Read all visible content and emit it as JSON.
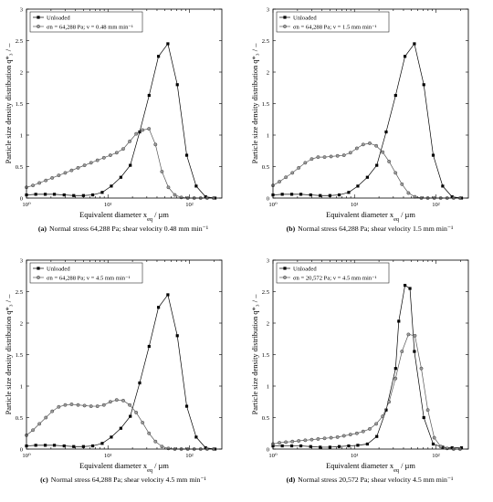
{
  "figure": {
    "colors": {
      "unloaded": "#000000",
      "loaded": "#555555",
      "loaded_fill": "#9a9a9a"
    }
  },
  "chart_data": [
    {
      "type": "line",
      "panel_label": "(a)",
      "caption": "Normal stress 64,288 Pa; shear velocity 0.48 mm min⁻¹",
      "xlabel": "Equivalent diameter x_eq / µm",
      "ylabel": "Particle size density distribution q*₃ / –",
      "xscale": "log",
      "xlim": [
        1,
        250
      ],
      "ylim": [
        0,
        3
      ],
      "yticks": [
        "0",
        "0.5",
        "1",
        "1.5",
        "2",
        "2.5",
        "3"
      ],
      "xticks": [
        "10⁰",
        "10¹",
        "10²"
      ],
      "legend_position": "top-left",
      "series": [
        {
          "name": "Unloaded",
          "marker": "square",
          "x": [
            1,
            1.3,
            1.7,
            2.2,
            2.9,
            3.8,
            5,
            6.5,
            8.5,
            11,
            14.4,
            18.8,
            24.5,
            32,
            41.7,
            54.4,
            71,
            92.6,
            121,
            158,
            206
          ],
          "y": [
            0.05,
            0.06,
            0.06,
            0.06,
            0.05,
            0.04,
            0.04,
            0.05,
            0.09,
            0.19,
            0.33,
            0.52,
            1.05,
            1.63,
            2.25,
            2.45,
            1.8,
            0.68,
            0.19,
            0.02,
            0.0
          ]
        },
        {
          "name": "σn = 64,288 Pa; v = 0.48 mm min⁻¹",
          "marker": "circle",
          "x": [
            1,
            1.2,
            1.44,
            1.73,
            2.07,
            2.49,
            2.99,
            3.58,
            4.3,
            5.16,
            6.2,
            7.43,
            8.92,
            10.7,
            12.8,
            15.4,
            18.5,
            22.2,
            26.6,
            31.9,
            38.3,
            46,
            55.2,
            66.2,
            79.5,
            95.4,
            114.4,
            137.3,
            164.8,
            197.7
          ],
          "y": [
            0.17,
            0.2,
            0.24,
            0.28,
            0.32,
            0.36,
            0.4,
            0.44,
            0.48,
            0.52,
            0.56,
            0.6,
            0.64,
            0.68,
            0.72,
            0.78,
            0.9,
            1.02,
            1.08,
            1.1,
            0.85,
            0.42,
            0.17,
            0.05,
            0.01,
            0,
            0,
            0,
            0,
            0
          ]
        }
      ]
    },
    {
      "type": "line",
      "panel_label": "(b)",
      "caption": "Normal stress 64,288 Pa; shear velocity 1.5 mm min⁻¹",
      "xlabel": "Equivalent diameter x_eq / µm",
      "ylabel": "Particle size density distribution q*₃ / –",
      "xscale": "log",
      "xlim": [
        1,
        250
      ],
      "ylim": [
        0,
        3
      ],
      "yticks": [
        "0",
        "0.5",
        "1",
        "1.5",
        "2",
        "2.5",
        "3"
      ],
      "xticks": [
        "10⁰",
        "10¹",
        "10²"
      ],
      "legend_position": "top-left",
      "series": [
        {
          "name": "Unloaded",
          "marker": "square",
          "x": [
            1,
            1.3,
            1.7,
            2.2,
            2.9,
            3.8,
            5,
            6.5,
            8.5,
            11,
            14.4,
            18.8,
            24.5,
            32,
            41.7,
            54.4,
            71,
            92.6,
            121,
            158,
            206
          ],
          "y": [
            0.05,
            0.06,
            0.06,
            0.06,
            0.05,
            0.04,
            0.04,
            0.05,
            0.09,
            0.19,
            0.33,
            0.52,
            1.05,
            1.63,
            2.25,
            2.45,
            1.8,
            0.68,
            0.19,
            0.02,
            0.0
          ]
        },
        {
          "name": "σn = 64,288 Pa; v = 1.5 mm min⁻¹",
          "marker": "circle",
          "x": [
            1,
            1.2,
            1.44,
            1.73,
            2.07,
            2.49,
            2.99,
            3.58,
            4.3,
            5.16,
            6.2,
            7.43,
            8.92,
            10.7,
            12.8,
            15.4,
            18.5,
            22.2,
            26.6,
            31.9,
            38.3,
            46,
            55.2,
            66.2,
            79.5,
            95.4,
            114.4,
            137.3,
            164.8,
            197.7
          ],
          "y": [
            0.2,
            0.26,
            0.33,
            0.4,
            0.48,
            0.56,
            0.62,
            0.65,
            0.65,
            0.66,
            0.67,
            0.68,
            0.72,
            0.79,
            0.85,
            0.87,
            0.83,
            0.73,
            0.58,
            0.4,
            0.22,
            0.08,
            0.02,
            0,
            0,
            0,
            0,
            0,
            0,
            0
          ]
        }
      ]
    },
    {
      "type": "line",
      "panel_label": "(c)",
      "caption": "Normal stress 64,288 Pa; shear velocity 4.5 mm min⁻¹",
      "xlabel": "Equivalent diameter x_eq / µm",
      "ylabel": "Particle size density distribution q*₃ / –",
      "xscale": "log",
      "xlim": [
        1,
        250
      ],
      "ylim": [
        0,
        3
      ],
      "yticks": [
        "0",
        "0.5",
        "1",
        "1.5",
        "2",
        "2.5",
        "3"
      ],
      "xticks": [
        "10⁰",
        "10¹",
        "10²"
      ],
      "legend_position": "top-left",
      "series": [
        {
          "name": "Unloaded",
          "marker": "square",
          "x": [
            1,
            1.3,
            1.7,
            2.2,
            2.9,
            3.8,
            5,
            6.5,
            8.5,
            11,
            14.4,
            18.8,
            24.5,
            32,
            41.7,
            54.4,
            71,
            92.6,
            121,
            158,
            206
          ],
          "y": [
            0.05,
            0.06,
            0.06,
            0.06,
            0.05,
            0.04,
            0.04,
            0.05,
            0.09,
            0.19,
            0.33,
            0.52,
            1.05,
            1.63,
            2.25,
            2.45,
            1.8,
            0.68,
            0.19,
            0.02,
            0.0
          ]
        },
        {
          "name": "σn = 64,288 Pa; v = 4.5 mm min⁻¹",
          "marker": "circle",
          "x": [
            1,
            1.2,
            1.44,
            1.73,
            2.07,
            2.49,
            2.99,
            3.58,
            4.3,
            5.16,
            6.2,
            7.43,
            8.92,
            10.7,
            12.8,
            15.4,
            18.5,
            22.2,
            26.6,
            31.9,
            38.3,
            46,
            55.2,
            66.2,
            79.5,
            95.4,
            114.4,
            137.3,
            164.8,
            197.7
          ],
          "y": [
            0.22,
            0.3,
            0.4,
            0.5,
            0.6,
            0.67,
            0.7,
            0.71,
            0.7,
            0.69,
            0.68,
            0.68,
            0.7,
            0.75,
            0.78,
            0.77,
            0.7,
            0.58,
            0.42,
            0.25,
            0.12,
            0.04,
            0.01,
            0,
            0,
            0,
            0,
            0,
            0,
            0
          ]
        }
      ]
    },
    {
      "type": "line",
      "panel_label": "(d)",
      "caption": "Normal stress 20,572 Pa; shear velocity 4.5 mm min⁻¹",
      "xlabel": "Equivalent diameter x_eq / µm",
      "ylabel": "Particle size density distribution q*₃ / –",
      "xscale": "log",
      "xlim": [
        1,
        250
      ],
      "ylim": [
        0,
        3
      ],
      "yticks": [
        "0",
        "0.5",
        "1",
        "1.5",
        "2",
        "2.5",
        "3"
      ],
      "xticks": [
        "10⁰",
        "10¹",
        "10²"
      ],
      "legend_position": "top-left",
      "series": [
        {
          "name": "Unloaded",
          "marker": "square",
          "x": [
            1,
            1.3,
            1.7,
            2.2,
            2.9,
            3.8,
            5,
            6.5,
            8.5,
            11,
            14.4,
            18.8,
            24.5,
            32,
            35,
            41.7,
            48,
            54.4,
            71,
            92.6,
            121,
            158,
            206
          ],
          "y": [
            0.05,
            0.05,
            0.05,
            0.05,
            0.04,
            0.03,
            0.03,
            0.04,
            0.05,
            0.06,
            0.08,
            0.2,
            0.62,
            1.28,
            2.03,
            2.6,
            2.55,
            1.55,
            0.5,
            0.08,
            0.03,
            0.02,
            0.02
          ]
        },
        {
          "name": "σn = 20,572 Pa; v = 4.5 mm min⁻¹",
          "marker": "circle",
          "x": [
            1,
            1.2,
            1.44,
            1.73,
            2.07,
            2.49,
            2.99,
            3.58,
            4.3,
            5.16,
            6.2,
            7.43,
            8.92,
            10.7,
            12.8,
            15.4,
            18.5,
            22.2,
            26.6,
            31.9,
            38.3,
            46,
            55.2,
            66.2,
            79.5,
            95.4,
            114.4,
            137.3,
            164.8,
            197.7
          ],
          "y": [
            0.08,
            0.1,
            0.11,
            0.12,
            0.13,
            0.14,
            0.15,
            0.16,
            0.17,
            0.18,
            0.19,
            0.21,
            0.23,
            0.25,
            0.28,
            0.32,
            0.4,
            0.52,
            0.75,
            1.12,
            1.55,
            1.82,
            1.8,
            1.28,
            0.62,
            0.18,
            0.04,
            0.01,
            0,
            0
          ]
        }
      ]
    }
  ]
}
